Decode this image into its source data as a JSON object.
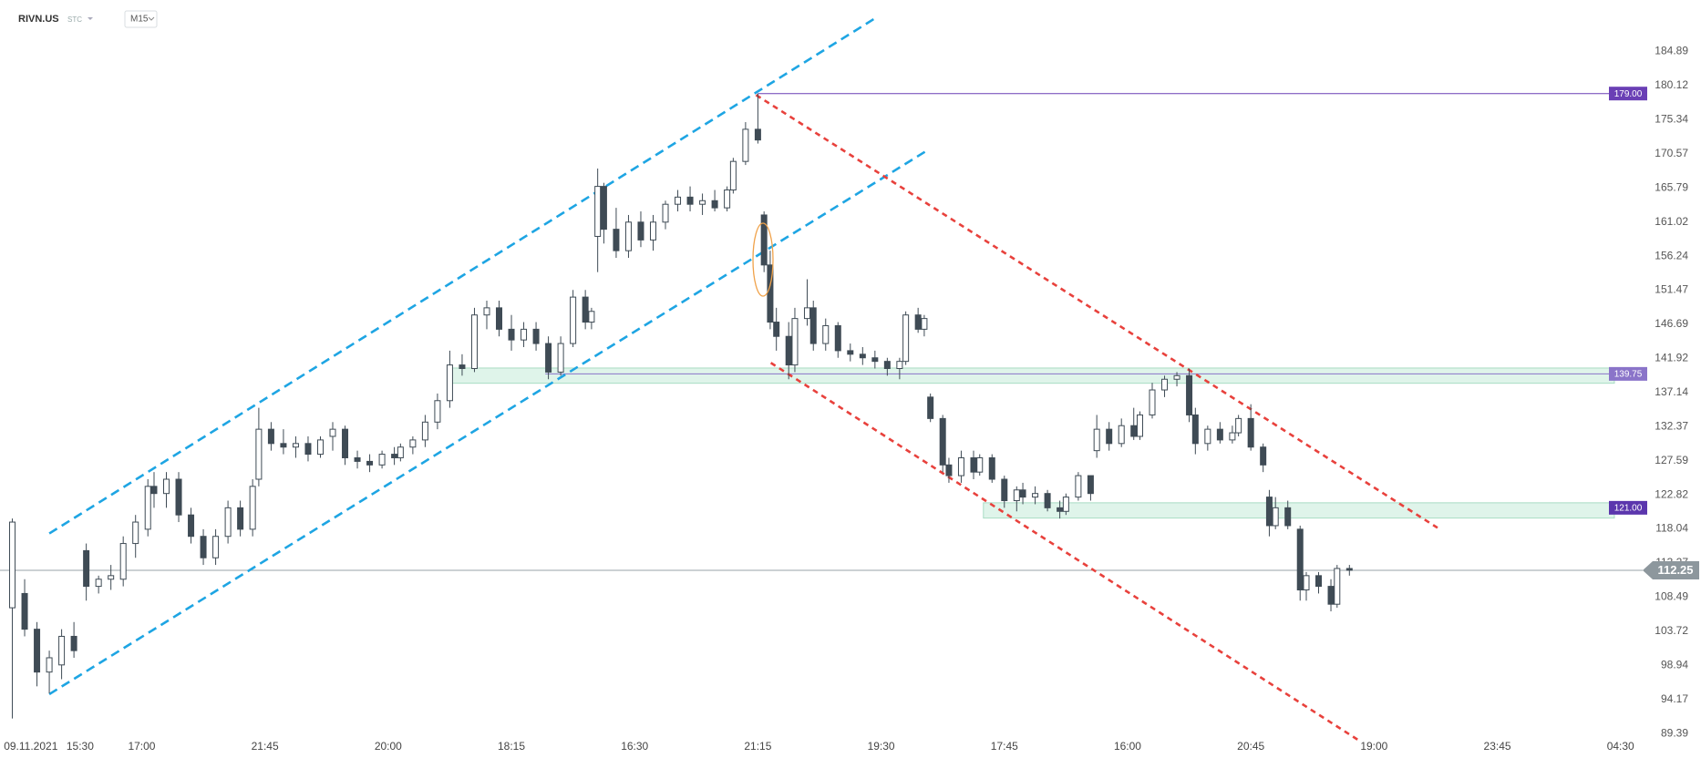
{
  "chart_data": {
    "type": "candlestick",
    "title": "RIVN.US",
    "subtitle": "STC",
    "interval": "M15",
    "up_color": "#ffffff",
    "down_color": "#3f4b55",
    "grid": false,
    "xlim": [
      0,
      266
    ],
    "ylim": [
      88.9,
      192.1
    ],
    "yticks": [
      184.89,
      180.12,
      175.34,
      170.57,
      165.79,
      161.02,
      156.24,
      151.47,
      146.69,
      141.92,
      137.14,
      132.37,
      127.59,
      122.82,
      118.04,
      113.27,
      108.49,
      103.72,
      98.94,
      94.17,
      89.39
    ],
    "xticks": [
      {
        "value": 5,
        "label": "09.11.2021"
      },
      {
        "value": 13,
        "label": "15:30"
      },
      {
        "value": 23,
        "label": "17:00"
      },
      {
        "value": 43,
        "label": "21:45"
      },
      {
        "value": 63,
        "label": "20:00"
      },
      {
        "value": 83,
        "label": "18:15"
      },
      {
        "value": 103,
        "label": "16:30"
      },
      {
        "value": 123,
        "label": "21:15"
      },
      {
        "value": 143,
        "label": "19:30"
      },
      {
        "value": 163,
        "label": "17:45"
      },
      {
        "value": 183,
        "label": "16:00"
      },
      {
        "value": 203,
        "label": "20:45"
      },
      {
        "value": 223,
        "label": "19:00"
      },
      {
        "value": 243,
        "label": "23:45"
      },
      {
        "value": 263,
        "label": "04:30"
      }
    ],
    "x": [
      2,
      4,
      6,
      8,
      10,
      12,
      14,
      16,
      18,
      20,
      22,
      24,
      25,
      27,
      29,
      31,
      33,
      35,
      37,
      39,
      41,
      42,
      44,
      46,
      48,
      50,
      52,
      54,
      56,
      58,
      60,
      62,
      64,
      65,
      67,
      69,
      71,
      73,
      75,
      77,
      79,
      81,
      83,
      85,
      87,
      89,
      91,
      93,
      95,
      96,
      97,
      98,
      100,
      102,
      104,
      106,
      108,
      110,
      112,
      114,
      116,
      118,
      119,
      121,
      123,
      124,
      125,
      126,
      128,
      129,
      131,
      132,
      134,
      136,
      138,
      140,
      142,
      144,
      146,
      147,
      149,
      150,
      151,
      153,
      154,
      156,
      158,
      159,
      161,
      163,
      165,
      166,
      168,
      170,
      172,
      173,
      175,
      177,
      178,
      180,
      182,
      184,
      185,
      187,
      189,
      191,
      193,
      194,
      196,
      198,
      200,
      201,
      203,
      205,
      206,
      207,
      209,
      211,
      212,
      214,
      216,
      217,
      219
    ],
    "open": [
      107,
      109,
      104,
      98,
      99,
      103,
      115,
      110,
      111,
      111,
      116,
      118,
      124,
      123,
      125,
      120,
      117,
      114,
      117,
      121,
      118,
      125,
      132,
      130,
      129.5,
      130,
      128.5,
      131,
      132,
      128,
      127.5,
      127,
      128.5,
      128,
      129.5,
      130.5,
      133,
      136,
      141,
      140.5,
      148,
      149,
      146,
      144.5,
      146,
      144,
      140,
      144,
      150.5,
      147,
      159,
      166,
      160,
      157,
      161,
      158.5,
      161,
      163.5,
      164.5,
      163.5,
      164,
      163,
      165.5,
      169.5,
      174,
      162,
      155,
      147,
      145,
      141,
      147.5,
      149,
      144,
      146.5,
      143,
      142.5,
      142,
      141.5,
      140.5,
      141.5,
      148,
      146,
      136.5,
      133.5,
      127,
      125.5,
      128,
      126,
      128,
      125,
      122,
      123.5,
      122.5,
      123,
      121,
      120.5,
      122.5,
      125.5,
      129,
      132,
      130,
      132.5,
      131,
      134,
      137.5,
      139,
      139.5,
      134,
      130,
      132,
      130.5,
      131.5,
      133.5,
      129.5,
      122.5,
      118.5,
      121,
      118,
      109.5,
      111.5,
      110,
      107.5,
      112.5
    ],
    "high": [
      119.5,
      111,
      105,
      101,
      104,
      105,
      116,
      111.5,
      113,
      117,
      120,
      125,
      126,
      126,
      126,
      121,
      118,
      118,
      122,
      122,
      125,
      135,
      133,
      132,
      131,
      131,
      131,
      133,
      132.5,
      129,
      128.5,
      129,
      129.5,
      130,
      131,
      134,
      137,
      143,
      142.5,
      149,
      150,
      150,
      148,
      147,
      147,
      145,
      145,
      151.5,
      151.5,
      149,
      168.5,
      166.5,
      163,
      162,
      162.5,
      162,
      164,
      165.5,
      166,
      165,
      165.5,
      166,
      170,
      175,
      179,
      162.5,
      157,
      149,
      147,
      149,
      153,
      150,
      147.5,
      147,
      144,
      143.5,
      143,
      142,
      142,
      148.5,
      149,
      148,
      137,
      134,
      128,
      129,
      129,
      128.5,
      128.5,
      125.5,
      124,
      124.5,
      124,
      123.5,
      122,
      123,
      126,
      125.5,
      134,
      133,
      133.5,
      135,
      134.5,
      138.5,
      139.5,
      140,
      140.5,
      135,
      132.5,
      133,
      132.5,
      134,
      135.5,
      130,
      123.5,
      122.5,
      122,
      118.5,
      112,
      112,
      111,
      113,
      113
    ],
    "low": [
      91.5,
      103,
      96,
      95,
      97,
      100,
      108,
      109,
      109.5,
      110,
      114,
      117,
      121,
      121,
      119,
      116,
      113,
      113,
      116,
      117,
      117,
      124,
      129,
      128.5,
      128,
      127.5,
      128,
      129,
      127,
      126.5,
      126,
      126.5,
      127,
      127.5,
      128.5,
      129.5,
      132,
      135,
      139.5,
      140,
      146,
      145,
      143,
      143.5,
      143,
      139,
      139.5,
      143.5,
      146,
      146,
      154,
      158,
      156,
      156,
      157.5,
      157,
      160,
      162.5,
      162.5,
      162,
      162.5,
      162.5,
      165,
      169,
      172,
      154,
      146,
      143,
      139,
      140,
      146.5,
      143,
      143,
      142,
      141.5,
      141,
      140.5,
      139.5,
      139,
      141,
      145.5,
      145,
      133,
      126,
      124.5,
      124.5,
      125,
      125.5,
      124.5,
      121,
      120.5,
      121.5,
      121.5,
      120.5,
      119.5,
      120,
      122,
      122,
      128,
      129,
      129.5,
      130.5,
      130.5,
      133.5,
      136.5,
      138,
      133,
      128.5,
      129,
      130,
      130,
      131,
      129,
      126,
      117,
      118,
      118,
      108,
      108,
      109,
      106.5,
      107,
      111.5
    ],
    "close": [
      119,
      104,
      98,
      100,
      103,
      101,
      110,
      111,
      111.5,
      116,
      119,
      124,
      123,
      125,
      120,
      117,
      114,
      117,
      121,
      118,
      124,
      132,
      130,
      129.5,
      130,
      128.5,
      130.5,
      132,
      128,
      127.5,
      127,
      128.5,
      128,
      129.5,
      130.5,
      133,
      136,
      141,
      140.5,
      148,
      149,
      146,
      144.5,
      146,
      144,
      140,
      144,
      150.5,
      147,
      148.5,
      166,
      160,
      157,
      161,
      158.5,
      161,
      163.5,
      164.5,
      163.5,
      164,
      163,
      165.5,
      169.5,
      174,
      172.5,
      155,
      147,
      145,
      141,
      147.5,
      149,
      144,
      146.5,
      143,
      142.5,
      142,
      141.5,
      140.5,
      141.5,
      148,
      146,
      147.5,
      133.5,
      127,
      125.5,
      128,
      126,
      128,
      125,
      122,
      123.5,
      122.5,
      123,
      121,
      120.5,
      122.5,
      125.5,
      123,
      132,
      130,
      132.5,
      131,
      134,
      137.5,
      139,
      139.5,
      134,
      130,
      132,
      130.5,
      131.5,
      133.5,
      129.5,
      127,
      118.5,
      121,
      118.5,
      109.5,
      111.5,
      110,
      107.5,
      112.5,
      112.25
    ],
    "trendlines": [
      {
        "color": "#1ea5e3",
        "x": [
          8,
          142.5
        ],
        "y": [
          117.4,
          189.8
        ]
      },
      {
        "color": "#1ea5e3",
        "x": [
          8,
          150.4
        ],
        "y": [
          94.9,
          171.0
        ]
      },
      {
        "color": "#e8413c",
        "x": [
          122.7,
          233.3
        ],
        "y": [
          178.8,
          118.2
        ]
      },
      {
        "color": "#e8413c",
        "x": [
          125.1,
          220.4
        ],
        "y": [
          141.3,
          88.5
        ]
      }
    ],
    "zones": [
      {
        "x": [
          72.6,
          262
        ],
        "y": [
          138.44,
          140.57
        ]
      },
      {
        "x": [
          159.6,
          262
        ],
        "y": [
          119.56,
          121.7
        ]
      }
    ],
    "levels": [
      {
        "value": 179,
        "label": "179.00",
        "color": "#6a3fb5",
        "from": 123
      },
      {
        "value": 139.75,
        "label": "139.75",
        "color": "#8a74c9",
        "from": 88.5
      },
      {
        "value": 121,
        "label": "121.00",
        "color": "#5b36ad"
      }
    ],
    "current_price": 112.25
  }
}
